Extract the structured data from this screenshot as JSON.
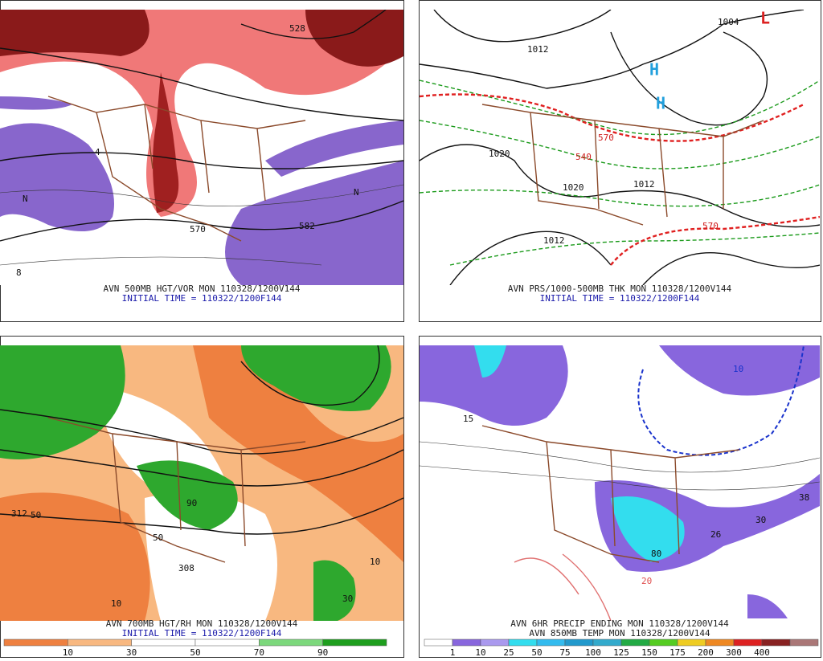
{
  "panels": [
    {
      "caption": "AVN 500MB HGT/VOR MON 110328/1200V144",
      "initial": "INITIAL TIME = 110322/1200F144",
      "labels": [
        "528",
        "582",
        "570",
        "N",
        "N",
        "8",
        "4"
      ]
    },
    {
      "caption": "AVN PRS/1000-500MB THK MON 110328/1200V144",
      "initial": "INITIAL TIME = 110322/1200F144",
      "labels": [
        "1004",
        "1012",
        "1020",
        "1020",
        "1012",
        "1012",
        "540",
        "570",
        "570",
        "H",
        "H",
        "L"
      ]
    },
    {
      "caption": "AVN 700MB HGT/RH MON 110328/1200V144",
      "initial": "INITIAL TIME = 110322/1200F144",
      "labels": [
        "312",
        "50",
        "10",
        "10",
        "90",
        "50",
        "308",
        "30"
      ]
    },
    {
      "caption": "AVN 6HR PRECIP ENDING MON 110328/1200V144",
      "initial": "AVN 850MB TEMP MON 110328/1200V144",
      "labels": [
        "15",
        "10",
        "30",
        "26",
        "38",
        "20",
        "80"
      ]
    }
  ],
  "colorbars": [
    {
      "labels": [
        "10",
        "30",
        "50",
        "70",
        "90"
      ],
      "colors": [
        "#ee8040",
        "#f8b880",
        "#ffffff",
        "#ffffff",
        "#7cd87c",
        "#1e9e1e"
      ]
    },
    {
      "labels": [
        "1",
        "10",
        "25",
        "50",
        "75",
        "100",
        "125",
        "150",
        "175",
        "200",
        "300",
        "400"
      ],
      "colors": [
        "#ffffff",
        "#8866dd",
        "#aa99ee",
        "#33ddee",
        "#33bbee",
        "#2299cc",
        "#33aacc",
        "#22aa44",
        "#55cc22",
        "#eecc22",
        "#ee8822",
        "#dd2222",
        "#882222",
        "#aa7777"
      ]
    }
  ]
}
